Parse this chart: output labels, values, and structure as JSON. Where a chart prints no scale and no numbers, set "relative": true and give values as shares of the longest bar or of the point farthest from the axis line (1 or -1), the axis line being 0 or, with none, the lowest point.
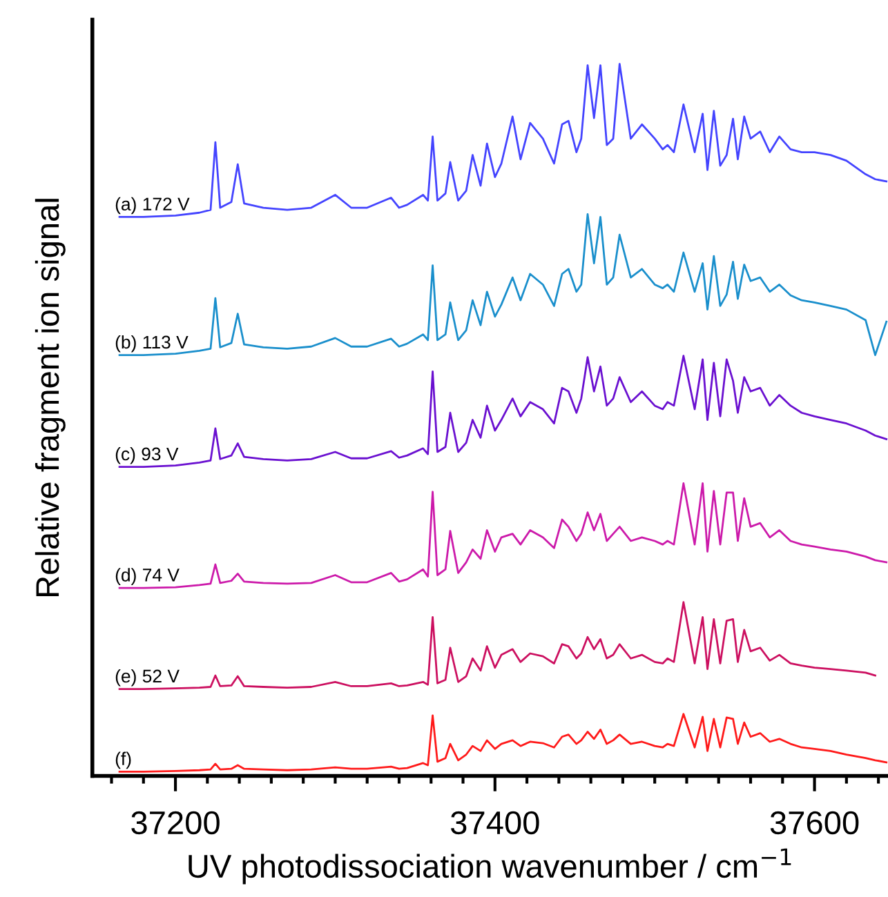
{
  "chart_data": {
    "type": "line",
    "relative": true,
    "xlabel": "UV photodissociation wavenumber / cm$^{−1}$",
    "ylabel": "Relative fragment ion signal",
    "xlim": [
      37148,
      37646
    ],
    "xticks": [
      {
        "value": 37160,
        "label": null
      },
      {
        "value": 37180,
        "label": null
      },
      37200,
      {
        "value": 37220,
        "label": null
      },
      {
        "value": 37240,
        "label": null
      },
      {
        "value": 37260,
        "label": null
      },
      {
        "value": 37280,
        "label": null
      },
      {
        "value": 37300,
        "label": null
      },
      {
        "value": 37320,
        "label": null
      },
      {
        "value": 37340,
        "label": null
      },
      {
        "value": 37360,
        "label": null
      },
      {
        "value": 37380,
        "label": null
      },
      37400,
      {
        "value": 37420,
        "label": null
      },
      {
        "value": 37440,
        "label": null
      },
      {
        "value": 37460,
        "label": null
      },
      {
        "value": 37480,
        "label": null
      },
      {
        "value": 37500,
        "label": null
      },
      {
        "value": 37520,
        "label": null
      },
      {
        "value": 37540,
        "label": null
      },
      {
        "value": 37560,
        "label": null
      },
      {
        "value": 37580,
        "label": null
      },
      37600,
      {
        "value": 37620,
        "label": null
      },
      {
        "value": 37640,
        "label": null
      }
    ],
    "grid": false,
    "legend": false,
    "marker": "none",
    "line_style": "solid",
    "x": [
      37165,
      37180,
      37200,
      37215,
      37222,
      37225,
      37228,
      37235,
      37239,
      37243,
      37255,
      37270,
      37285,
      37300,
      37310,
      37320,
      37335,
      37340,
      37345,
      37355,
      37358,
      37361,
      37364,
      37369,
      37372,
      37377,
      37382,
      37386,
      37391,
      37395,
      37400,
      37404,
      37411,
      37416,
      37422,
      37430,
      37437,
      37442,
      37446,
      37451,
      37454,
      37458,
      37462,
      37466,
      37470,
      37474,
      37478,
      37485,
      37492,
      37500,
      37505,
      37508,
      37512,
      37518,
      37525,
      37530,
      37533,
      37537,
      37541,
      37545,
      37549,
      37552,
      37556,
      37560,
      37566,
      37572,
      37578,
      37585,
      37592,
      37600,
      37610,
      37620,
      37632,
      37638,
      37645
    ],
    "series": [
      {
        "name": "(a) 172 V",
        "color": "#4444ff",
        "values": [
          0.785,
          0.785,
          0.787,
          0.791,
          0.795,
          0.89,
          0.798,
          0.806,
          0.859,
          0.804,
          0.798,
          0.795,
          0.798,
          0.816,
          0.798,
          0.798,
          0.812,
          0.798,
          0.802,
          0.816,
          0.808,
          0.898,
          0.808,
          0.818,
          0.862,
          0.808,
          0.822,
          0.872,
          0.829,
          0.888,
          0.841,
          0.86,
          0.926,
          0.866,
          0.917,
          0.895,
          0.86,
          0.915,
          0.92,
          0.876,
          0.895,
          0.998,
          0.924,
          0.998,
          0.886,
          0.895,
          1.0,
          0.895,
          0.915,
          0.895,
          0.88,
          0.886,
          0.876,
          0.943,
          0.876,
          0.93,
          0.851,
          0.934,
          0.857,
          0.872,
          0.923,
          0.866,
          0.926,
          0.895,
          0.905,
          0.876,
          0.898,
          0.88,
          0.876,
          0.876,
          0.872,
          0.864,
          0.845,
          0.838,
          0.835
        ]
      },
      {
        "name": "(b) 113 V",
        "color": "#1a8fcc",
        "values": [
          0.591,
          0.591,
          0.593,
          0.597,
          0.6,
          0.671,
          0.602,
          0.608,
          0.649,
          0.606,
          0.602,
          0.6,
          0.603,
          0.615,
          0.603,
          0.603,
          0.614,
          0.603,
          0.607,
          0.62,
          0.612,
          0.717,
          0.612,
          0.62,
          0.665,
          0.612,
          0.626,
          0.668,
          0.633,
          0.68,
          0.645,
          0.662,
          0.7,
          0.668,
          0.705,
          0.69,
          0.66,
          0.705,
          0.712,
          0.68,
          0.69,
          0.789,
          0.72,
          0.785,
          0.69,
          0.7,
          0.76,
          0.7,
          0.712,
          0.69,
          0.685,
          0.69,
          0.68,
          0.735,
          0.68,
          0.72,
          0.655,
          0.73,
          0.66,
          0.676,
          0.722,
          0.67,
          0.718,
          0.695,
          0.7,
          0.68,
          0.69,
          0.675,
          0.668,
          0.665,
          0.66,
          0.655,
          0.64,
          0.591,
          0.638
        ]
      },
      {
        "name": "(c) 93 V",
        "color": "#6a10d0",
        "values": [
          0.434,
          0.434,
          0.436,
          0.44,
          0.443,
          0.488,
          0.445,
          0.45,
          0.467,
          0.448,
          0.445,
          0.443,
          0.445,
          0.455,
          0.446,
          0.446,
          0.456,
          0.447,
          0.45,
          0.46,
          0.452,
          0.568,
          0.455,
          0.462,
          0.51,
          0.455,
          0.468,
          0.5,
          0.475,
          0.52,
          0.485,
          0.5,
          0.53,
          0.505,
          0.525,
          0.515,
          0.495,
          0.545,
          0.54,
          0.51,
          0.53,
          0.588,
          0.54,
          0.575,
          0.52,
          0.53,
          0.56,
          0.525,
          0.54,
          0.52,
          0.515,
          0.525,
          0.52,
          0.59,
          0.515,
          0.585,
          0.5,
          0.58,
          0.505,
          0.585,
          0.555,
          0.51,
          0.56,
          0.54,
          0.545,
          0.52,
          0.535,
          0.52,
          0.51,
          0.505,
          0.5,
          0.495,
          0.485,
          0.478,
          0.473
        ]
      },
      {
        "name": "(d) 74 V",
        "color": "#cc1aaa",
        "values": [
          0.264,
          0.264,
          0.265,
          0.268,
          0.27,
          0.297,
          0.271,
          0.274,
          0.284,
          0.273,
          0.271,
          0.27,
          0.271,
          0.282,
          0.272,
          0.272,
          0.285,
          0.273,
          0.276,
          0.29,
          0.28,
          0.399,
          0.282,
          0.29,
          0.344,
          0.285,
          0.3,
          0.318,
          0.305,
          0.345,
          0.315,
          0.335,
          0.34,
          0.325,
          0.345,
          0.335,
          0.32,
          0.36,
          0.35,
          0.33,
          0.34,
          0.37,
          0.345,
          0.368,
          0.33,
          0.34,
          0.35,
          0.33,
          0.335,
          0.33,
          0.325,
          0.33,
          0.325,
          0.411,
          0.325,
          0.411,
          0.315,
          0.4,
          0.325,
          0.398,
          0.398,
          0.33,
          0.39,
          0.35,
          0.355,
          0.335,
          0.345,
          0.33,
          0.325,
          0.322,
          0.318,
          0.315,
          0.308,
          0.303,
          0.3
        ]
      },
      {
        "name": "(e) 52 V",
        "color": "#cc1060",
        "values": [
          0.122,
          0.122,
          0.123,
          0.124,
          0.125,
          0.141,
          0.126,
          0.127,
          0.14,
          0.126,
          0.125,
          0.124,
          0.125,
          0.132,
          0.126,
          0.126,
          0.13,
          0.126,
          0.127,
          0.132,
          0.128,
          0.223,
          0.13,
          0.135,
          0.18,
          0.132,
          0.14,
          0.165,
          0.148,
          0.182,
          0.152,
          0.17,
          0.178,
          0.16,
          0.172,
          0.168,
          0.158,
          0.185,
          0.182,
          0.165,
          0.172,
          0.195,
          0.178,
          0.192,
          0.165,
          0.17,
          0.185,
          0.165,
          0.17,
          0.16,
          0.158,
          0.165,
          0.16,
          0.244,
          0.158,
          0.223,
          0.15,
          0.22,
          0.158,
          0.218,
          0.22,
          0.16,
          0.205,
          0.175,
          0.18,
          0.162,
          0.17,
          0.158,
          0.155,
          0.152,
          0.15,
          0.148,
          0.145,
          0.141,
          null
        ]
      },
      {
        "name": "(f)",
        "color": "#ff1a1a",
        "values": [
          0.006,
          0.006,
          0.007,
          0.008,
          0.009,
          0.017,
          0.009,
          0.01,
          0.015,
          0.01,
          0.009,
          0.008,
          0.009,
          0.012,
          0.01,
          0.01,
          0.013,
          0.01,
          0.011,
          0.018,
          0.015,
          0.085,
          0.02,
          0.025,
          0.045,
          0.022,
          0.03,
          0.042,
          0.035,
          0.05,
          0.038,
          0.045,
          0.05,
          0.042,
          0.048,
          0.046,
          0.04,
          0.055,
          0.058,
          0.045,
          0.05,
          0.062,
          0.052,
          0.065,
          0.045,
          0.05,
          0.058,
          0.045,
          0.048,
          0.042,
          0.04,
          0.045,
          0.042,
          0.087,
          0.04,
          0.083,
          0.035,
          0.08,
          0.04,
          0.082,
          0.08,
          0.045,
          0.075,
          0.055,
          0.06,
          0.048,
          0.052,
          0.045,
          0.04,
          0.038,
          0.035,
          0.03,
          0.025,
          0.022,
          0.019
        ]
      }
    ]
  }
}
